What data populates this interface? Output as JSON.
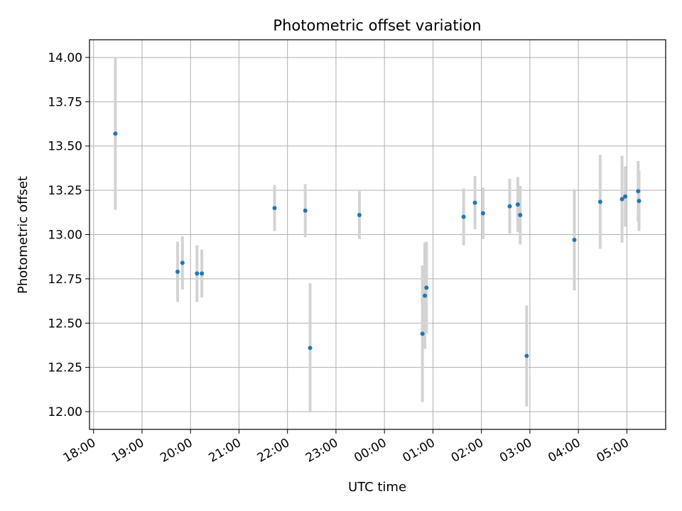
{
  "chart_data": {
    "type": "scatter",
    "title": "Photometric offset variation",
    "xlabel": "UTC time",
    "ylabel": "Photometric offset",
    "xlim": [
      "17:55",
      "29:48"
    ],
    "ylim": [
      11.9,
      14.1
    ],
    "grid": true,
    "x_tick_labels": [
      "18:00",
      "19:00",
      "20:00",
      "21:00",
      "22:00",
      "23:00",
      "00:00",
      "01:00",
      "02:00",
      "03:00",
      "04:00",
      "05:00"
    ],
    "y_tick_labels": [
      "12.00",
      "12.25",
      "12.50",
      "12.75",
      "13.00",
      "13.25",
      "13.50",
      "13.75",
      "14.00"
    ],
    "y_ticks": [
      12.0,
      12.25,
      12.5,
      12.75,
      13.0,
      13.25,
      13.5,
      13.75,
      14.0
    ],
    "marker_color": "#1f77b4",
    "errorbar_color": "#d3d3d3",
    "points": [
      {
        "time": "18:27",
        "y": 13.57,
        "err": 0.43
      },
      {
        "time": "19:44",
        "y": 12.79,
        "err": 0.17
      },
      {
        "time": "19:50",
        "y": 12.84,
        "err": 0.15
      },
      {
        "time": "20:08",
        "y": 12.78,
        "err": 0.16
      },
      {
        "time": "20:14",
        "y": 12.78,
        "err": 0.135
      },
      {
        "time": "21:44",
        "y": 13.15,
        "err": 0.13
      },
      {
        "time": "22:22",
        "y": 13.135,
        "err": 0.15
      },
      {
        "time": "22:28",
        "y": 12.36,
        "err": 0.365
      },
      {
        "time": "23:29",
        "y": 13.11,
        "err": 0.135
      },
      {
        "time": "00:47",
        "y": 12.44,
        "err": 0.385
      },
      {
        "time": "00:50",
        "y": 12.655,
        "err": 0.3
      },
      {
        "time": "00:52",
        "y": 12.7,
        "err": 0.26
      },
      {
        "time": "01:38",
        "y": 13.1,
        "err": 0.16
      },
      {
        "time": "01:52",
        "y": 13.18,
        "err": 0.15
      },
      {
        "time": "02:02",
        "y": 13.12,
        "err": 0.145
      },
      {
        "time": "02:35",
        "y": 13.16,
        "err": 0.155
      },
      {
        "time": "02:45",
        "y": 13.17,
        "err": 0.155
      },
      {
        "time": "02:48",
        "y": 13.11,
        "err": 0.165
      },
      {
        "time": "02:56",
        "y": 12.315,
        "err": 0.285
      },
      {
        "time": "03:55",
        "y": 12.97,
        "err": 0.285
      },
      {
        "time": "04:27",
        "y": 13.185,
        "err": 0.265
      },
      {
        "time": "04:54",
        "y": 13.2,
        "err": 0.245
      },
      {
        "time": "04:58",
        "y": 13.215,
        "err": 0.17
      },
      {
        "time": "05:14",
        "y": 13.245,
        "err": 0.17
      },
      {
        "time": "05:15",
        "y": 13.19,
        "err": 0.17
      }
    ]
  }
}
